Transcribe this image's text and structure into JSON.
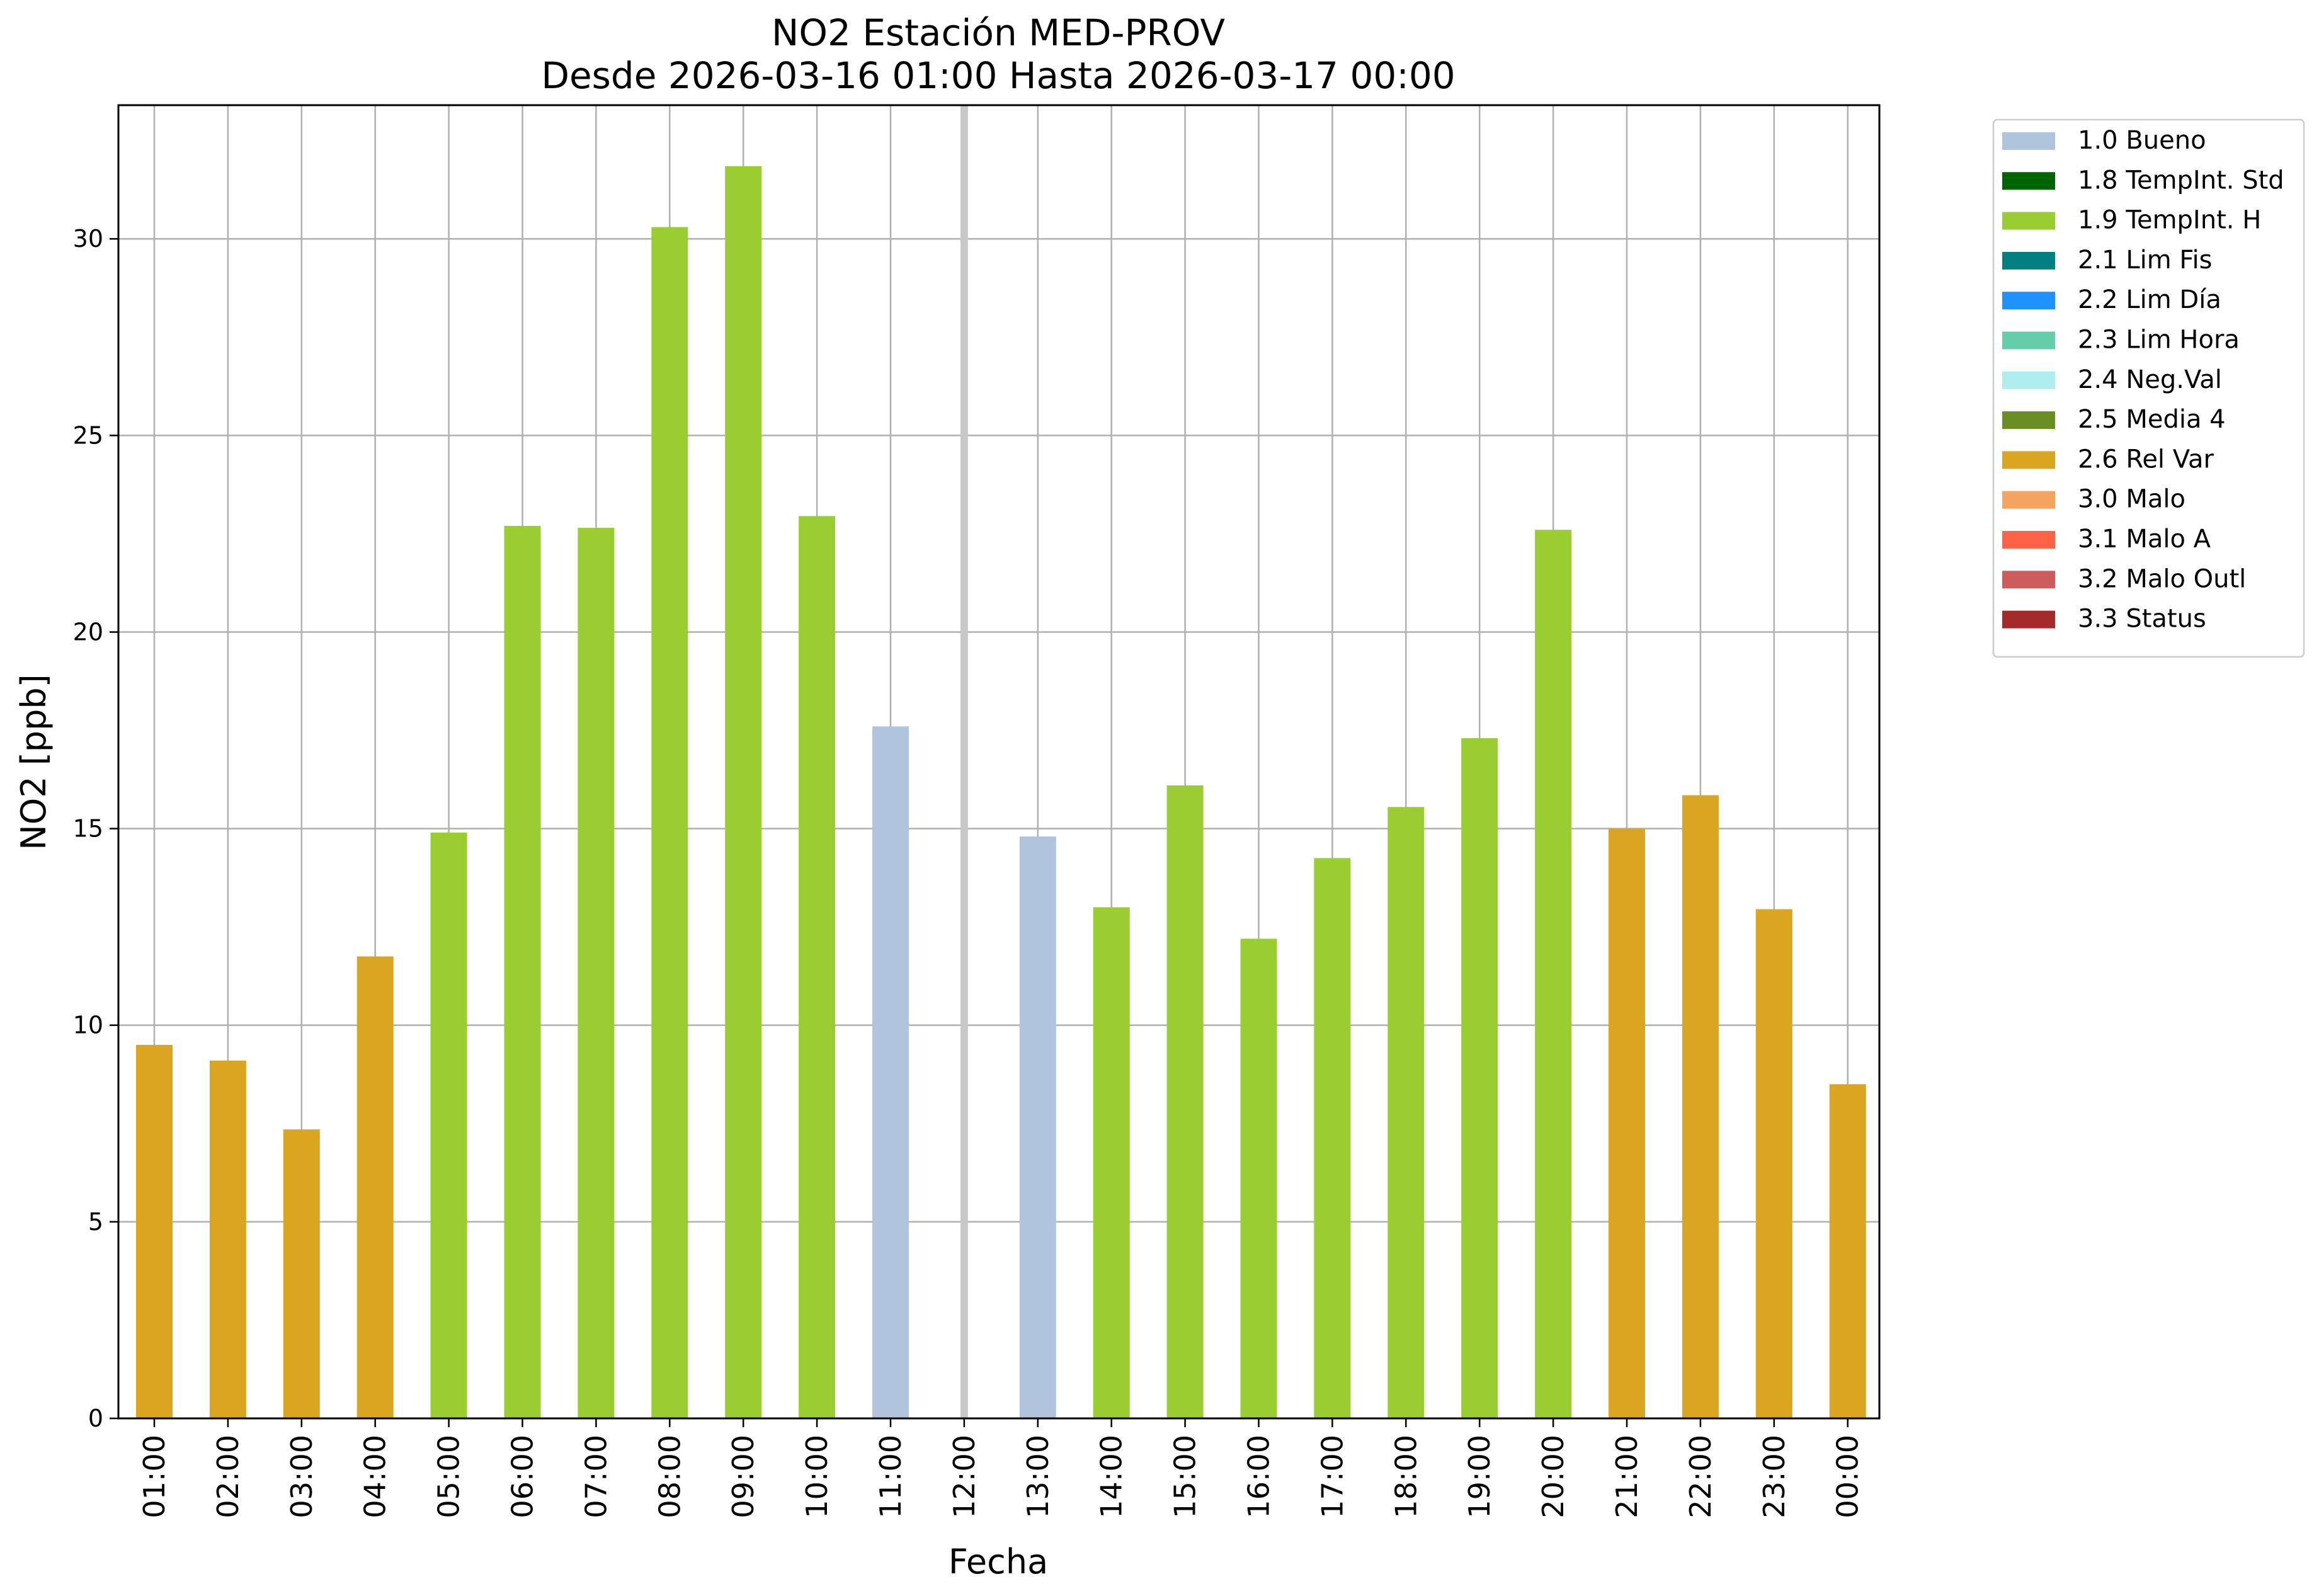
{
  "chart_data": {
    "type": "bar",
    "title": "NO2 Estación MED-PROV",
    "subtitle": "Desde 2026-03-16 01:00 Hasta 2026-03-17 00:00",
    "xlabel": "Fecha",
    "ylabel": "NO2 [ppb]",
    "ylim": [
      0,
      33.4
    ],
    "yticks": [
      0,
      5,
      10,
      15,
      20,
      25,
      30
    ],
    "grid": true,
    "legend_position": "outside-right",
    "categories": [
      "01:00",
      "02:00",
      "03:00",
      "04:00",
      "05:00",
      "06:00",
      "07:00",
      "08:00",
      "09:00",
      "10:00",
      "11:00",
      "12:00",
      "13:00",
      "14:00",
      "15:00",
      "16:00",
      "17:00",
      "18:00",
      "19:00",
      "20:00",
      "21:00",
      "22:00",
      "23:00",
      "00:00"
    ],
    "values": [
      9.5,
      9.1,
      7.35,
      11.75,
      14.9,
      22.7,
      22.65,
      30.3,
      31.85,
      22.95,
      17.6,
      null,
      14.8,
      13.0,
      16.1,
      12.2,
      14.25,
      15.55,
      17.3,
      22.6,
      15.0,
      15.85,
      12.95,
      8.5
    ],
    "flags": [
      "2.6 Rel Var",
      "2.6 Rel Var",
      "2.6 Rel Var",
      "2.6 Rel Var",
      "1.9 TempInt. H",
      "1.9 TempInt. H",
      "1.9 TempInt. H",
      "1.9 TempInt. H",
      "1.9 TempInt. H",
      "1.9 TempInt. H",
      "1.0 Bueno",
      null,
      "1.0 Bueno",
      "1.9 TempInt. H",
      "1.9 TempInt. H",
      "1.9 TempInt. H",
      "1.9 TempInt. H",
      "1.9 TempInt. H",
      "1.9 TempInt. H",
      "1.9 TempInt. H",
      "2.6 Rel Var",
      "2.6 Rel Var",
      "2.6 Rel Var",
      "2.6 Rel Var"
    ],
    "missing_marker_category": "12:00",
    "legend": [
      {
        "label": "1.0 Bueno",
        "color": "#b0c4de"
      },
      {
        "label": "1.8 TempInt. Std",
        "color": "#006400"
      },
      {
        "label": "1.9 TempInt. H",
        "color": "#9acd32"
      },
      {
        "label": "2.1 Lim Fis",
        "color": "#008080"
      },
      {
        "label": "2.2 Lim Día",
        "color": "#1e90ff"
      },
      {
        "label": "2.3 Lim Hora",
        "color": "#66cdaa"
      },
      {
        "label": "2.4 Neg.Val",
        "color": "#afeeee"
      },
      {
        "label": "2.5 Media 4",
        "color": "#6b8e23"
      },
      {
        "label": "2.6 Rel Var",
        "color": "#daa520"
      },
      {
        "label": "3.0 Malo",
        "color": "#f4a460"
      },
      {
        "label": "3.1 Malo A",
        "color": "#ff6347"
      },
      {
        "label": "3.2 Malo Outl",
        "color": "#cd5c5c"
      },
      {
        "label": "3.3 Status",
        "color": "#a52a2a"
      }
    ],
    "missing_marker_color": "#c8c8c8",
    "grid_color": "#b0b0b0"
  }
}
